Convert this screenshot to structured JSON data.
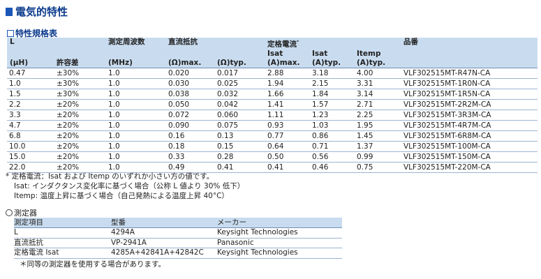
{
  "title": "電気的特性",
  "subtitle": "特性規格表",
  "spec_header": {
    "l": "L",
    "l_unit": "(μH)",
    "tolerance": "許容差",
    "freq": "測定周波数",
    "freq_unit": "(MHz)",
    "dcr": "直流抵抗",
    "dcr_max": "(Ω)max.",
    "dcr_typ": "(Ω)typ.",
    "rated": "定格電流",
    "rated_mark": "*",
    "isat_max_1": "Isat",
    "isat_max_2": "(A)max.",
    "isat_typ_1": "Isat",
    "isat_typ_2": "(A)typ.",
    "itemp_1": "Itemp",
    "itemp_2": "(A)typ.",
    "part": "品番"
  },
  "spec_rows": [
    [
      "0.47",
      "±30%",
      "1.0",
      "0.020",
      "0.017",
      "2.88",
      "3.18",
      "4.00",
      "VLF302515MT-R47N-CA"
    ],
    [
      "1.0",
      "±30%",
      "1.0",
      "0.030",
      "0.025",
      "1.94",
      "2.15",
      "3.31",
      "VLF302515MT-1R0N-CA"
    ],
    [
      "1.5",
      "±30%",
      "1.0",
      "0.038",
      "0.032",
      "1.66",
      "1.84",
      "3.14",
      "VLF302515MT-1R5N-CA"
    ],
    [
      "2.2",
      "±20%",
      "1.0",
      "0.050",
      "0.042",
      "1.41",
      "1.57",
      "2.71",
      "VLF302515MT-2R2M-CA"
    ],
    [
      "3.3",
      "±20%",
      "1.0",
      "0.072",
      "0.060",
      "1.11",
      "1.23",
      "2.25",
      "VLF302515MT-3R3M-CA"
    ],
    [
      "4.7",
      "±20%",
      "1.0",
      "0.090",
      "0.075",
      "0.93",
      "1.03",
      "1.95",
      "VLF302515MT-4R7M-CA"
    ],
    [
      "6.8",
      "±20%",
      "1.0",
      "0.16",
      "0.13",
      "0.77",
      "0.86",
      "1.45",
      "VLF302515MT-6R8M-CA"
    ],
    [
      "10.0",
      "±20%",
      "1.0",
      "0.18",
      "0.15",
      "0.64",
      "0.71",
      "1.37",
      "VLF302515MT-100M-CA"
    ],
    [
      "15.0",
      "±20%",
      "1.0",
      "0.33",
      "0.28",
      "0.50",
      "0.56",
      "0.99",
      "VLF302515MT-150M-CA"
    ],
    [
      "22.0",
      "±20%",
      "1.0",
      "0.49",
      "0.41",
      "0.41",
      "0.46",
      "0.75",
      "VLF302515MT-220M-CA"
    ]
  ],
  "notes": [
    "* 定格電流：Isat および Itemp のいずれか小さい方の値です。",
    "Isat: インダクタンス変化率に基づく場合（公称 L 値より 30% 低下）",
    "Itemp: 温度上昇に基づく場合（自己発熱による温度上昇 40°C）"
  ],
  "measurement": {
    "title": "測定器",
    "headers": [
      "測定項目",
      "型番",
      "メーカー"
    ],
    "rows": [
      [
        "L",
        "4294A",
        "Keysight Technologies"
      ],
      [
        "直流抵抗",
        "VP-2941A",
        "Panasonic"
      ],
      [
        "定格電流 Isat",
        "4285A+42841A+42842C",
        "Keysight Technologies"
      ]
    ],
    "note": "＊同等の測定器を使用する場合があります。"
  }
}
